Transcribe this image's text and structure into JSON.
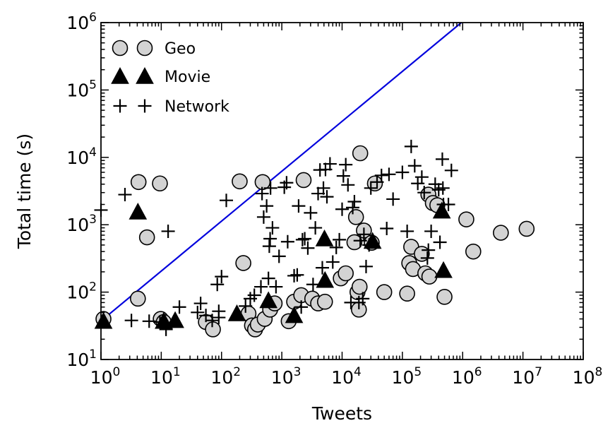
{
  "chart_data": {
    "type": "scatter",
    "xlabel": "Tweets",
    "ylabel": "Total time (s)",
    "xscale": "log",
    "yscale": "log",
    "xlim": [
      1,
      100000000
    ],
    "ylim": [
      10,
      1000000
    ],
    "xticks": [
      {
        "value": 1,
        "base": "10",
        "exp": "0"
      },
      {
        "value": 10,
        "base": "10",
        "exp": "1"
      },
      {
        "value": 100,
        "base": "10",
        "exp": "2"
      },
      {
        "value": 1000,
        "base": "10",
        "exp": "3"
      },
      {
        "value": 10000,
        "base": "10",
        "exp": "4"
      },
      {
        "value": 100000,
        "base": "10",
        "exp": "5"
      },
      {
        "value": 1000000,
        "base": "10",
        "exp": "6"
      },
      {
        "value": 10000000,
        "base": "10",
        "exp": "7"
      },
      {
        "value": 100000000,
        "base": "10",
        "exp": "8"
      }
    ],
    "yticks": [
      {
        "value": 10,
        "base": "10",
        "exp": "1"
      },
      {
        "value": 100,
        "base": "10",
        "exp": "2"
      },
      {
        "value": 1000,
        "base": "10",
        "exp": "3"
      },
      {
        "value": 10000,
        "base": "10",
        "exp": "4"
      },
      {
        "value": 100000,
        "base": "10",
        "exp": "5"
      },
      {
        "value": 1000000,
        "base": "10",
        "exp": "6"
      }
    ],
    "grid": false,
    "legend_position": "top-left",
    "reference_line": {
      "color": "#0000dd",
      "points": [
        [
          1.1,
          40
        ],
        [
          950000,
          1000000
        ]
      ]
    },
    "series": [
      {
        "name": "Geo",
        "marker": "circle",
        "color": "#d3d3d3",
        "points": [
          [
            1.1,
            40
          ],
          [
            4.1,
            80
          ],
          [
            4.2,
            4300
          ],
          [
            5.8,
            650
          ],
          [
            9.5,
            4100
          ],
          [
            9.8,
            40
          ],
          [
            11,
            36
          ],
          [
            55,
            36
          ],
          [
            72,
            28
          ],
          [
            200,
            4400
          ],
          [
            230,
            270
          ],
          [
            280,
            48
          ],
          [
            320,
            32
          ],
          [
            360,
            28
          ],
          [
            400,
            33
          ],
          [
            480,
            4300
          ],
          [
            520,
            40
          ],
          [
            640,
            55
          ],
          [
            760,
            68
          ],
          [
            1300,
            37
          ],
          [
            1600,
            72
          ],
          [
            2100,
            90
          ],
          [
            2300,
            4600
          ],
          [
            3200,
            80
          ],
          [
            4000,
            68
          ],
          [
            5200,
            72
          ],
          [
            9500,
            160
          ],
          [
            11500,
            190
          ],
          [
            16000,
            550
          ],
          [
            17000,
            1300
          ],
          [
            18000,
            100
          ],
          [
            19000,
            55
          ],
          [
            19500,
            120
          ],
          [
            20000,
            11500
          ],
          [
            23000,
            820
          ],
          [
            31000,
            540
          ],
          [
            35000,
            4100
          ],
          [
            50000,
            100
          ],
          [
            120000,
            95
          ],
          [
            130000,
            270
          ],
          [
            140000,
            470
          ],
          [
            150000,
            220
          ],
          [
            210000,
            370
          ],
          [
            240000,
            190
          ],
          [
            270000,
            2800
          ],
          [
            280000,
            170
          ],
          [
            320000,
            2100
          ],
          [
            380000,
            1950
          ],
          [
            500000,
            85
          ],
          [
            1150000,
            1200
          ],
          [
            1500000,
            400
          ],
          [
            4300000,
            760
          ],
          [
            11500000,
            870
          ]
        ]
      },
      {
        "name": "Movie",
        "marker": "triangle",
        "color": "#000000",
        "points": [
          [
            1.1,
            37
          ],
          [
            4.1,
            1550
          ],
          [
            11,
            37
          ],
          [
            17,
            38
          ],
          [
            180,
            48
          ],
          [
            600,
            75
          ],
          [
            1600,
            45
          ],
          [
            5100,
            620
          ],
          [
            5200,
            150
          ],
          [
            32000,
            570
          ],
          [
            450000,
            1600
          ],
          [
            480000,
            210
          ]
        ]
      },
      {
        "name": "Network",
        "marker": "plus",
        "color": "#000000",
        "points": [
          [
            1.0,
            1650
          ],
          [
            2.5,
            2800
          ],
          [
            3.2,
            38
          ],
          [
            6.3,
            37
          ],
          [
            9.5,
            36
          ],
          [
            12,
            28
          ],
          [
            13,
            800
          ],
          [
            20,
            60
          ],
          [
            40,
            50
          ],
          [
            45,
            68
          ],
          [
            55,
            45
          ],
          [
            70,
            38
          ],
          [
            90,
            42
          ],
          [
            90,
            52
          ],
          [
            120,
            2300
          ],
          [
            100,
            170
          ],
          [
            85,
            130
          ],
          [
            250,
            62
          ],
          [
            300,
            80
          ],
          [
            350,
            90
          ],
          [
            450,
            120
          ],
          [
            470,
            2900
          ],
          [
            500,
            1300
          ],
          [
            560,
            1900
          ],
          [
            600,
            160
          ],
          [
            620,
            480
          ],
          [
            640,
            620
          ],
          [
            650,
            3500
          ],
          [
            700,
            900
          ],
          [
            800,
            120
          ],
          [
            900,
            340
          ],
          [
            1100,
            3600
          ],
          [
            1200,
            4200
          ],
          [
            1250,
            560
          ],
          [
            1600,
            175
          ],
          [
            1800,
            180
          ],
          [
            1900,
            1900
          ],
          [
            2100,
            60
          ],
          [
            2200,
            600
          ],
          [
            2400,
            620
          ],
          [
            2700,
            450
          ],
          [
            3000,
            1500
          ],
          [
            3300,
            130
          ],
          [
            3600,
            900
          ],
          [
            4000,
            2900
          ],
          [
            4300,
            6500
          ],
          [
            4700,
            230
          ],
          [
            4900,
            3500
          ],
          [
            5300,
            6600
          ],
          [
            5600,
            2600
          ],
          [
            6300,
            8000
          ],
          [
            7000,
            280
          ],
          [
            8000,
            460
          ],
          [
            9000,
            600
          ],
          [
            10000,
            1700
          ],
          [
            10500,
            5300
          ],
          [
            11500,
            7800
          ],
          [
            12500,
            3900
          ],
          [
            14000,
            70
          ],
          [
            15000,
            1800
          ],
          [
            16000,
            2200
          ],
          [
            19000,
            70
          ],
          [
            20000,
            580
          ],
          [
            22000,
            80
          ],
          [
            23000,
            720
          ],
          [
            25000,
            240
          ],
          [
            28000,
            500
          ],
          [
            30000,
            3500
          ],
          [
            38000,
            4300
          ],
          [
            45000,
            5400
          ],
          [
            55000,
            880
          ],
          [
            60000,
            5600
          ],
          [
            70000,
            2400
          ],
          [
            100000,
            6000
          ],
          [
            120000,
            800
          ],
          [
            140000,
            14500
          ],
          [
            160000,
            7500
          ],
          [
            180000,
            4100
          ],
          [
            210000,
            5100
          ],
          [
            230000,
            3000
          ],
          [
            260000,
            320
          ],
          [
            270000,
            420
          ],
          [
            300000,
            800
          ],
          [
            350000,
            4000
          ],
          [
            400000,
            3300
          ],
          [
            420000,
            550
          ],
          [
            460000,
            9400
          ],
          [
            470000,
            3500
          ],
          [
            480000,
            2000
          ],
          [
            580000,
            2000
          ],
          [
            650000,
            6400
          ]
        ]
      }
    ]
  }
}
